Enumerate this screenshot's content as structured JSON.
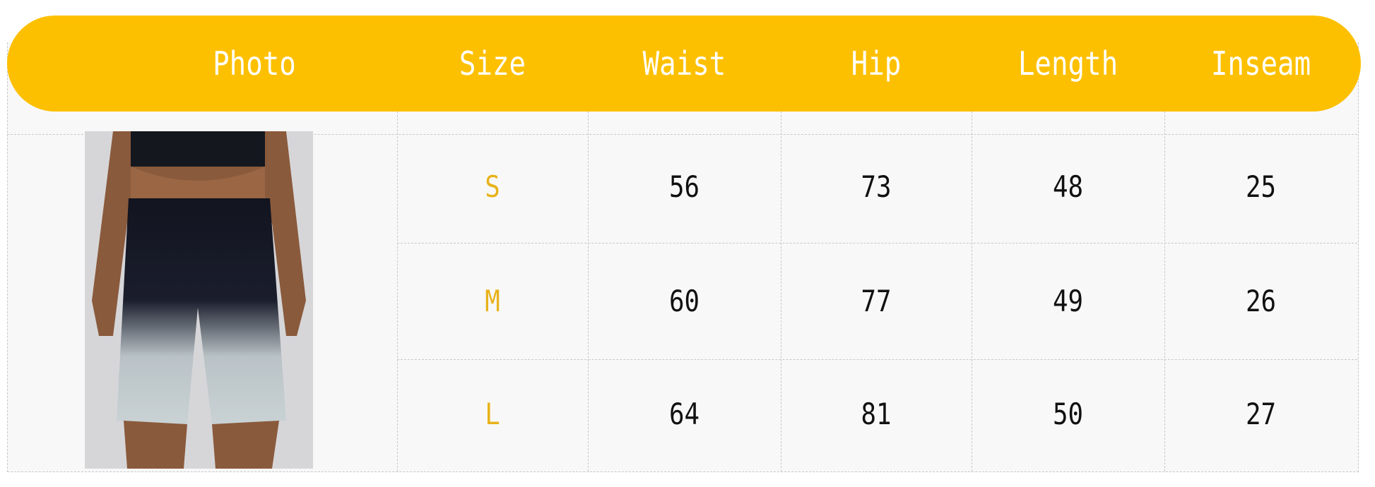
{
  "header": {
    "columns": [
      "Photo",
      "Size",
      "Waist",
      "Hip",
      "Length",
      "Inseam"
    ]
  },
  "rows": [
    {
      "size": "S",
      "waist": "56",
      "hip": "73",
      "length": "48",
      "inseam": "25"
    },
    {
      "size": "M",
      "waist": "60",
      "hip": "77",
      "length": "49",
      "inseam": "26"
    },
    {
      "size": "L",
      "waist": "64",
      "hip": "81",
      "length": "50",
      "inseam": "27"
    }
  ],
  "colors": {
    "header_bg": "#fdc000",
    "size_text": "#e8b21a"
  },
  "photo": {
    "icon": "product-photo-shorts"
  }
}
